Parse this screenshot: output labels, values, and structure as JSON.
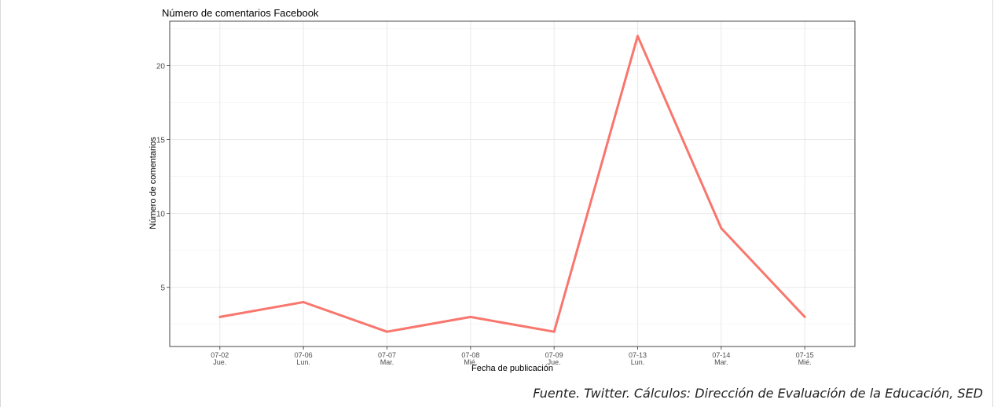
{
  "chart_data": {
    "type": "line",
    "title": "Número de comentarios Facebook",
    "xlabel": "Fecha de publicación",
    "ylabel": "Número de comentarios",
    "categories": [
      [
        "07-02",
        "Jue."
      ],
      [
        "07-06",
        "Lun."
      ],
      [
        "07-07",
        "Mar."
      ],
      [
        "07-08",
        "Mié."
      ],
      [
        "07-09",
        "Jue."
      ],
      [
        "07-13",
        "Lun."
      ],
      [
        "07-14",
        "Mar."
      ],
      [
        "07-15",
        "Mié."
      ]
    ],
    "values": [
      3,
      4,
      2,
      3,
      2,
      22,
      9,
      3
    ],
    "yticks": [
      5,
      10,
      15,
      20
    ],
    "ylim": [
      1,
      23
    ],
    "grid": true,
    "line_color": "#F8766D"
  },
  "caption": "Fuente. Twitter. Cálculos: Dirección de Evaluación de la Educación, SED"
}
